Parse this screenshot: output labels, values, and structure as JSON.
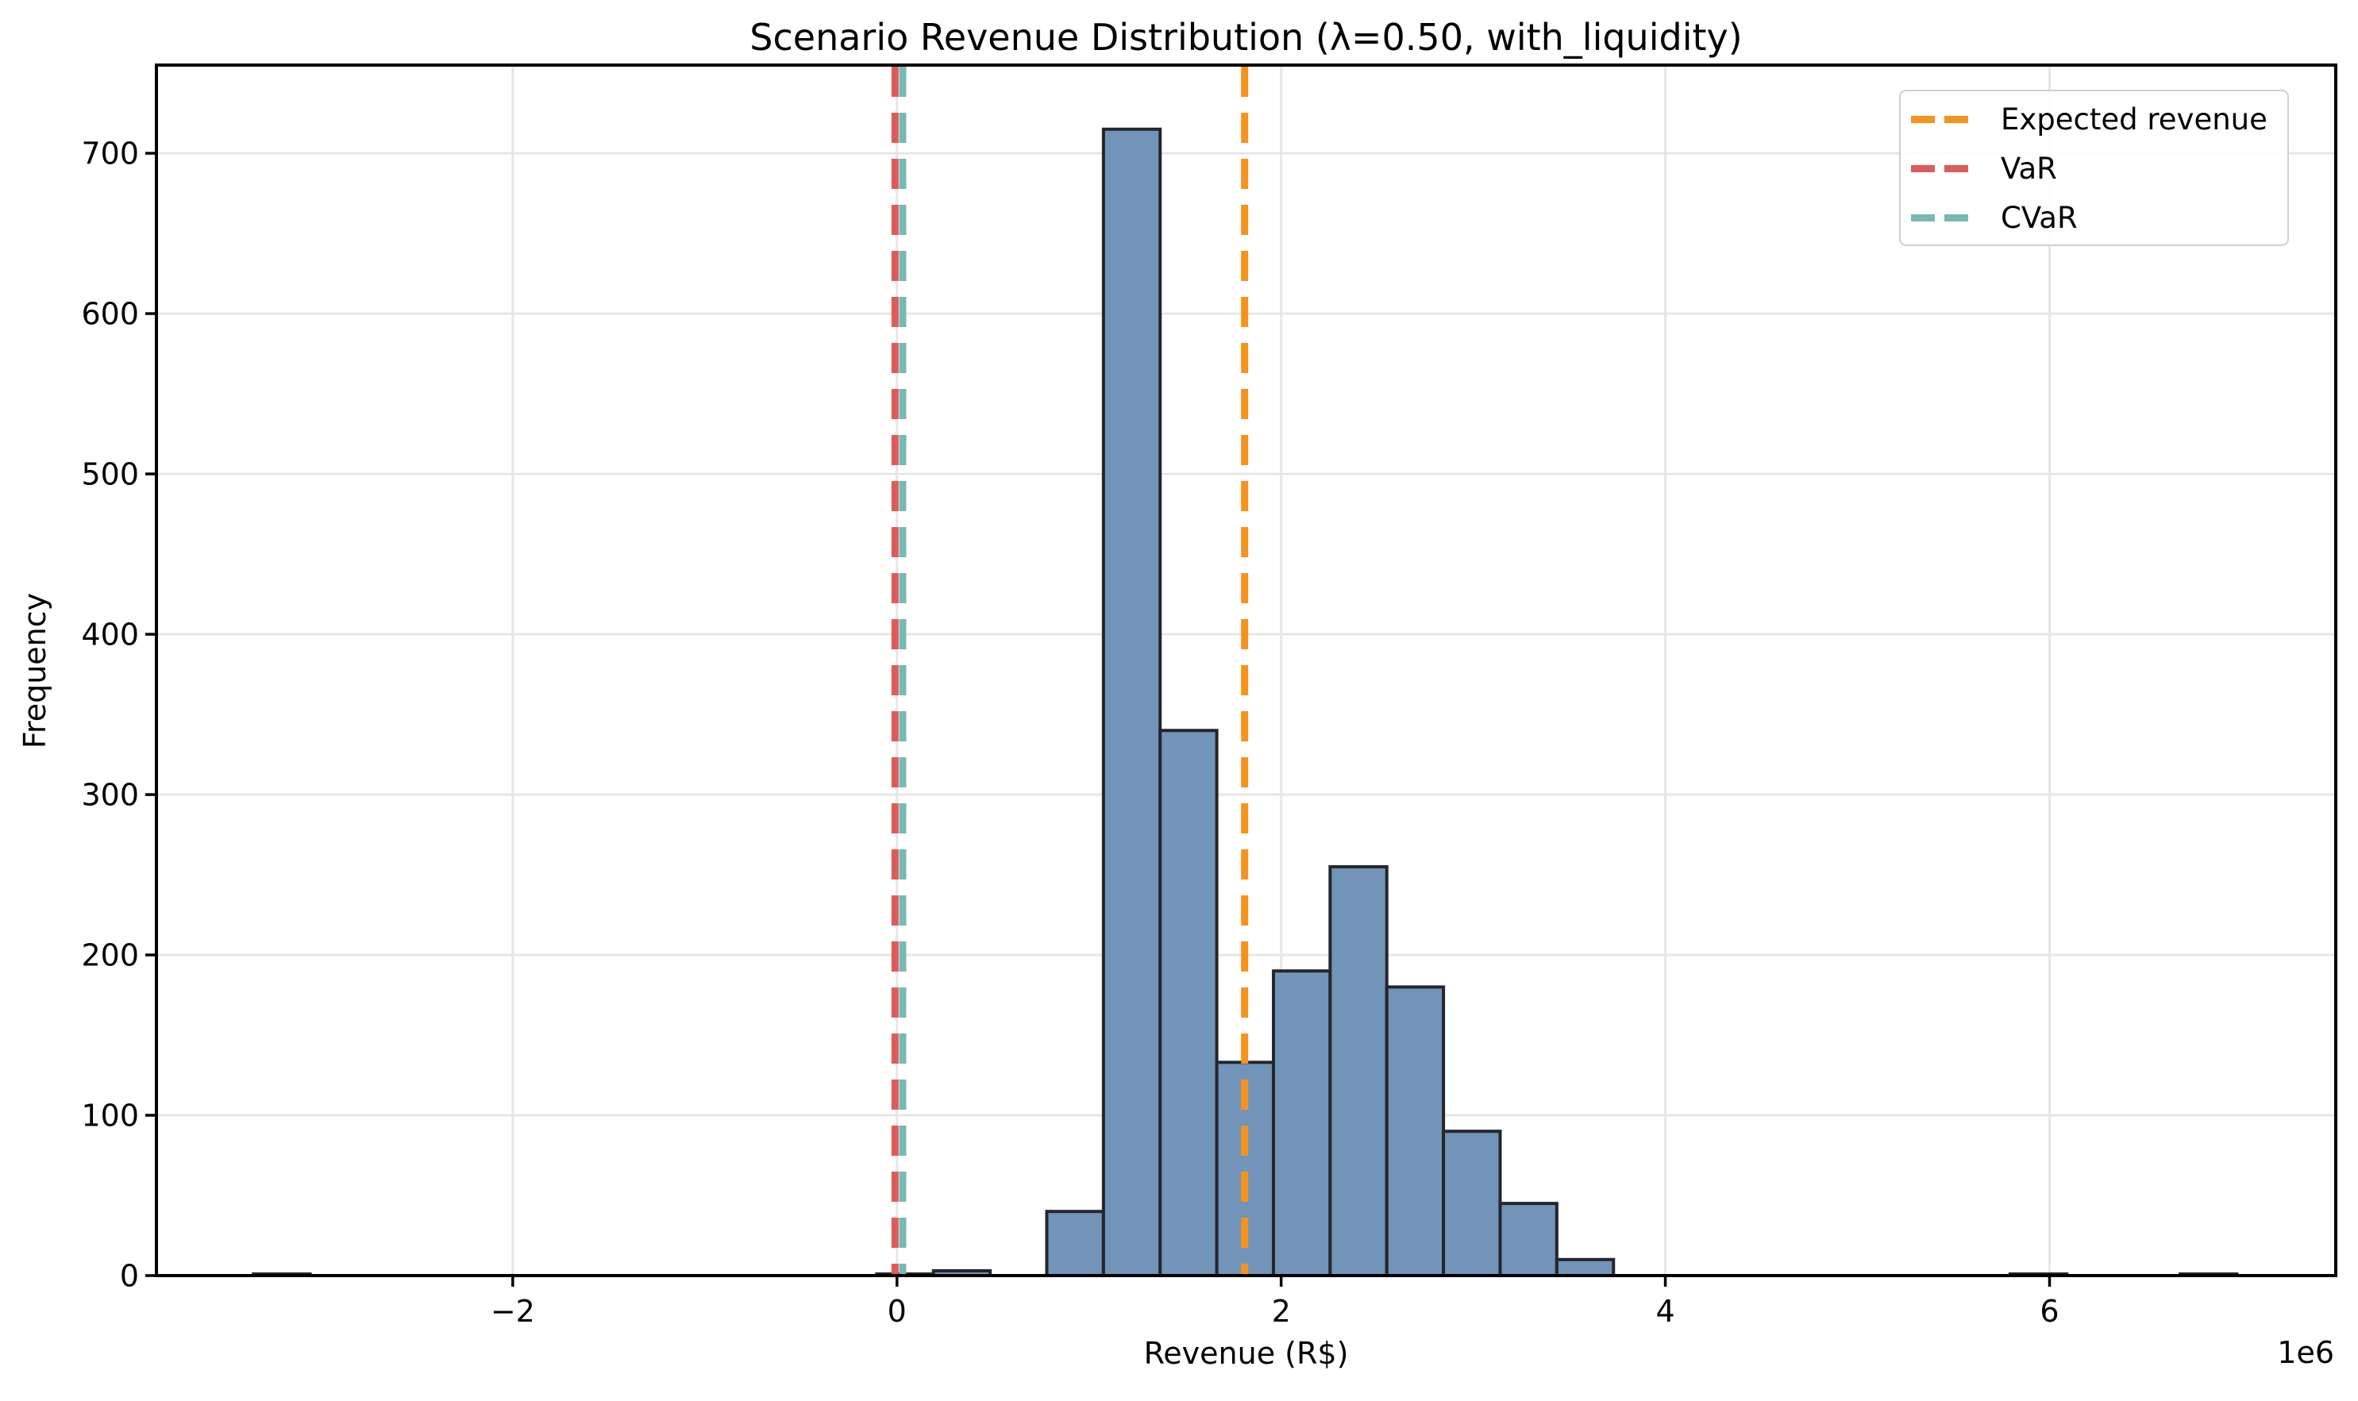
{
  "chart_data": {
    "type": "histogram",
    "title": "Scenario Revenue Distribution (λ=0.50, with_liquidity)",
    "xlabel": "Revenue (R$)",
    "ylabel": "Frequency",
    "x_axis_offset_label": "1e6",
    "x_units": "R$ × 1e6",
    "xlim": [
      -3.855,
      7.49
    ],
    "ylim": [
      0,
      755
    ],
    "x_ticks": [
      -2,
      0,
      2,
      4,
      6
    ],
    "x_tick_labels": [
      "−2",
      "0",
      "2",
      "4",
      "6"
    ],
    "y_ticks": [
      0,
      100,
      200,
      300,
      400,
      500,
      600,
      700
    ],
    "y_tick_labels": [
      "0",
      "100",
      "200",
      "300",
      "400",
      "500",
      "600",
      "700"
    ],
    "grid": true,
    "legend_position": "upper right",
    "bin_width": 0.295,
    "bins": [
      {
        "x0": -3.35,
        "x1": -3.055,
        "count": 1
      },
      {
        "x0": -0.105,
        "x1": 0.19,
        "count": 1
      },
      {
        "x0": 0.19,
        "x1": 0.485,
        "count": 3
      },
      {
        "x0": 0.78,
        "x1": 1.075,
        "count": 40
      },
      {
        "x0": 1.075,
        "x1": 1.37,
        "count": 715
      },
      {
        "x0": 1.37,
        "x1": 1.665,
        "count": 340
      },
      {
        "x0": 1.665,
        "x1": 1.96,
        "count": 133
      },
      {
        "x0": 1.96,
        "x1": 2.255,
        "count": 190
      },
      {
        "x0": 2.255,
        "x1": 2.55,
        "count": 255
      },
      {
        "x0": 2.55,
        "x1": 2.845,
        "count": 180
      },
      {
        "x0": 2.845,
        "x1": 3.14,
        "count": 90
      },
      {
        "x0": 3.14,
        "x1": 3.435,
        "count": 45
      },
      {
        "x0": 3.435,
        "x1": 3.73,
        "count": 10
      },
      {
        "x0": 5.795,
        "x1": 6.09,
        "count": 1
      },
      {
        "x0": 6.68,
        "x1": 6.975,
        "count": 1
      }
    ],
    "lines": [
      {
        "label": "Expected revenue",
        "x": 1.81,
        "color": "#f6921e"
      },
      {
        "label": "VaR",
        "x": -0.01,
        "color": "#de5b5b"
      },
      {
        "label": "CVaR",
        "x": 0.03,
        "color": "#79b8b3"
      }
    ],
    "colors": {
      "bar_fill": "#7294b8",
      "bar_edge": "#25252e",
      "grid": "#e6e6e6",
      "axis": "#000000",
      "background": "#ffffff"
    }
  }
}
